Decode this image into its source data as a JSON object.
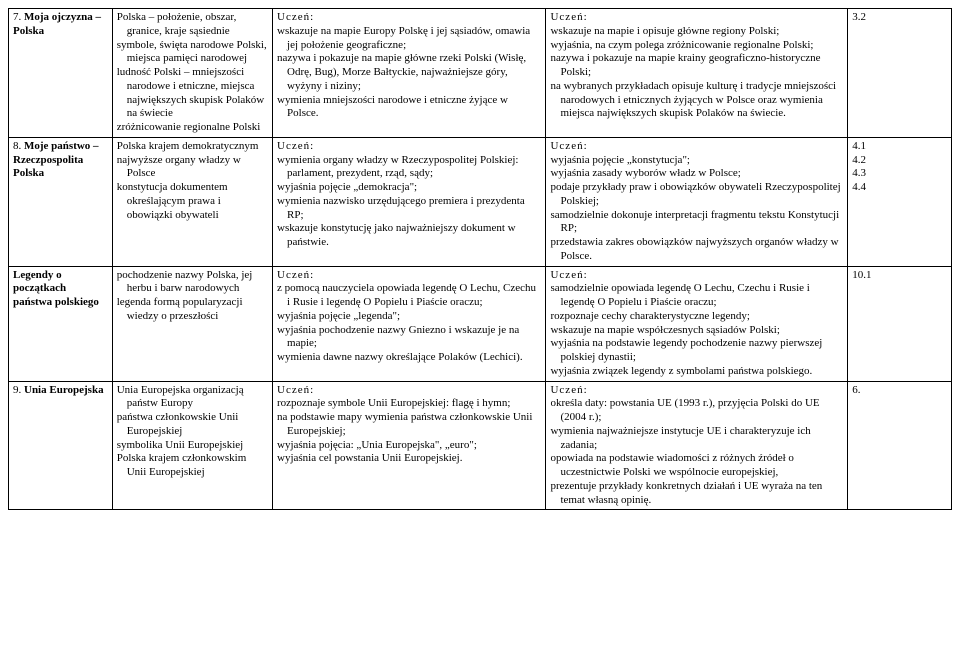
{
  "rows": [
    {
      "topic_num": "7. ",
      "topic_title": "Moja ojczyzna – Polska",
      "col2": "Polska – położenie, obszar, granice, kraje sąsiednie\nsymbole, święta narodowe Polski, miejsca pamięci narodowej\nludność Polski – mniejszości narodowe i etniczne, miejsca największych skupisk Polaków na świecie\nzróżnicowanie regionalne Polski",
      "col3_label": "Uczeń:",
      "col3": "wskazuje na mapie Europy Polskę i jej sąsiadów, omawia jej położenie geograficzne;\nnazywa i pokazuje na mapie główne rzeki Polski (Wisłę, Odrę, Bug), Morze Bałtyckie, najważniejsze góry, wyżyny i niziny;\nwymienia mniejszości narodowe i etniczne żyjące w Polsce.",
      "col4_label": "Uczeń:",
      "col4": "wskazuje na mapie i opisuje główne regiony Polski;\nwyjaśnia, na czym polega zróżnicowanie regionalne Polski;\nnazywa i pokazuje na mapie krainy geograficzno-historyczne Polski;\nna wybranych przykładach opisuje kulturę i tradycje mniejszości narodowych i etnicznych żyjących w Polsce oraz wymienia miejsca największych skupisk Polaków na świecie.",
      "col5": "3.2"
    },
    {
      "topic_num": "8. ",
      "topic_title": "Moje państwo – Rzeczpospolita Polska",
      "col2": "Polska krajem demokratycznym\nnajwyższe organy władzy w Polsce\nkonstytucja dokumentem określającym prawa i obowiązki obywateli",
      "col3_label": "Uczeń:",
      "col3": "wymienia organy władzy w Rzeczypospolitej Polskiej: parlament, prezydent, rząd, sądy;\nwyjaśnia pojęcie „demokracja\";\nwymienia nazwisko urzędującego premiera i prezydenta RP;\nwskazuje konstytucję jako najważniejszy dokument w państwie.",
      "col4_label": "Uczeń:",
      "col4": "wyjaśnia pojęcie „konstytucja\";\nwyjaśnia zasady wyborów władz w Polsce;\npodaje przykłady praw i obowiązków obywateli Rzeczypospolitej Polskiej;\nsamodzielnie dokonuje interpretacji fragmentu tekstu Konstytucji RP;\nprzedstawia zakres obowiązków najwyższych organów władzy w Polsce.",
      "col5": "4.1\n4.2\n4.3\n4.4"
    },
    {
      "topic_num": "",
      "topic_title": "Legendy o początkach państwa polskiego",
      "col2": "pochodzenie nazwy Polska, jej herbu i barw narodowych\nlegenda formą popularyzacji wiedzy o przeszłości",
      "col3_label": "Uczeń:",
      "col3": "z pomocą nauczyciela opowiada legendę O Lechu, Czechu i Rusie i legendę O Popielu i Piaście oraczu;\nwyjaśnia pojęcie „legenda\";\nwyjaśnia pochodzenie nazwy Gniezno    i wskazuje je na mapie;\nwymienia dawne nazwy określające Polaków (Lechici).",
      "col4_label": "Uczeń:",
      "col4": "samodzielnie opowiada legendę O Lechu, Czechu i Rusie i legendę O Popielu i Piaście oraczu;\nrozpoznaje cechy charakterystyczne legendy;\nwskazuje na mapie współczesnych sąsiadów Polski;\nwyjaśnia na podstawie legendy pochodzenie nazwy pierwszej polskiej dynastii;\nwyjaśnia związek legendy z symbolami państwa polskiego.",
      "col5": "10.1"
    },
    {
      "topic_num": "9. ",
      "topic_title": "Unia Europejska",
      "col2": "Unia Europejska organizacją państw Europy\npaństwa członkowskie Unii Europejskiej\nsymbolika Unii Europejskiej\nPolska krajem członkowskim Unii Europejskiej",
      "col3_label": "Uczeń:",
      "col3": "rozpoznaje symbole Unii Europejskiej: flagę i hymn;\nna podstawie mapy wymienia państwa członkowskie Unii Europejskiej;\nwyjaśnia pojęcia: „Unia Europejska\", „euro\";\nwyjaśnia cel powstania Unii Europejskiej.",
      "col4_label": "Uczeń:",
      "col4": "określa daty: powstania UE (1993 r.), przyjęcia Polski do UE (2004 r.);\nwymienia najważniejsze instytucje UE i charakteryzuje ich zadania;\nopowiada na podstawie wiadomości z różnych źródeł o uczestnictwie Polski we wspólnocie europejskiej,\nprezentuje przykłady konkretnych działań i UE wyraża na ten temat własną opinię.",
      "col5": "6."
    }
  ]
}
